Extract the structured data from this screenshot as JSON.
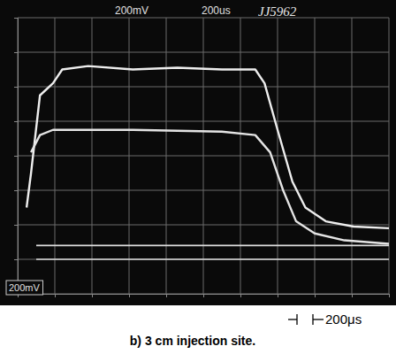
{
  "chart_data": {
    "type": "line",
    "title": "b) 3 cm injection site.",
    "annotations": [
      "200mV",
      "200us",
      "JJ5962",
      "200mV",
      "200μs"
    ],
    "xlim": [
      0,
      10
    ],
    "ylim": [
      0,
      8
    ],
    "xticks": [
      0,
      1,
      2,
      3,
      4,
      5,
      6,
      7,
      8,
      9,
      10
    ],
    "yticks": [
      0,
      1,
      2,
      3,
      4,
      5,
      6,
      7,
      8
    ],
    "grid": true,
    "tick_labels": false,
    "series": [
      {
        "color": "#eeeeee",
        "x": [
          0.24,
          0.36,
          0.6,
          0.95,
          1.2,
          1.9,
          3.1,
          4.3,
          5.5,
          6.4,
          6.65,
          7.0,
          7.4,
          7.75,
          8.3,
          9.05,
          10
        ],
        "values": [
          2.5,
          3.5,
          5.75,
          6.1,
          6.5,
          6.6,
          6.5,
          6.55,
          6.5,
          6.5,
          6.1,
          4.75,
          3.25,
          2.5,
          2.1,
          1.95,
          1.9
        ]
      },
      {
        "color": "#e4e4e4",
        "x": [
          0.36,
          0.6,
          0.95,
          3.1,
          5.5,
          6.4,
          6.8,
          7.15,
          7.5,
          8.0,
          8.8,
          10
        ],
        "values": [
          4.1,
          4.6,
          4.75,
          4.75,
          4.7,
          4.6,
          4.1,
          3.0,
          2.1,
          1.75,
          1.55,
          1.45
        ]
      },
      {
        "color": "#dddddd",
        "x": [
          0.5,
          10
        ],
        "values": [
          1.4,
          1.4
        ]
      },
      {
        "color": "#dddddd",
        "x": [
          0.5,
          10
        ],
        "values": [
          1.0,
          1.0
        ]
      }
    ]
  }
}
